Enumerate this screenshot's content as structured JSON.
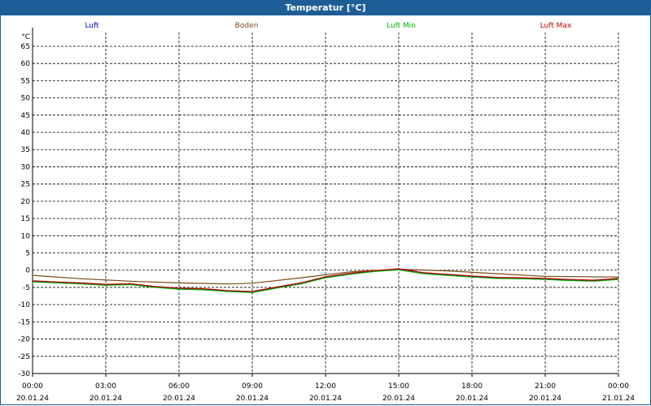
{
  "chart_data": {
    "type": "line",
    "title": "Temperatur [°C]",
    "ylabel": "°C",
    "ylim": [
      -30,
      69
    ],
    "yticks": [
      65,
      60,
      55,
      50,
      45,
      40,
      35,
      30,
      25,
      20,
      15,
      10,
      5,
      0,
      -5,
      -10,
      -15,
      -20,
      -25,
      -30
    ],
    "xlim": [
      "20.01.24 00:00",
      "21.01.24 00:00"
    ],
    "xticks": [
      {
        "time": "00:00",
        "date": "20.01.24"
      },
      {
        "time": "03:00",
        "date": "20.01.24"
      },
      {
        "time": "06:00",
        "date": "20.01.24"
      },
      {
        "time": "09:00",
        "date": "20.01.24"
      },
      {
        "time": "12:00",
        "date": "20.01.24"
      },
      {
        "time": "15:00",
        "date": "20.01.24"
      },
      {
        "time": "18:00",
        "date": "20.01.24"
      },
      {
        "time": "21:00",
        "date": "20.01.24"
      },
      {
        "time": "00:00",
        "date": "21.01.24"
      }
    ],
    "grid": true,
    "legend_position": "top",
    "series": [
      {
        "name": "Luft",
        "color": "#0000c0",
        "x": [
          "20.01.24 00:00",
          "20.01.24 01:00",
          "20.01.24 02:00",
          "20.01.24 03:00",
          "20.01.24 04:00",
          "20.01.24 05:00",
          "20.01.24 06:00",
          "20.01.24 07:00",
          "20.01.24 08:00",
          "20.01.24 09:00",
          "20.01.24 10:00",
          "20.01.24 11:00",
          "20.01.24 12:00",
          "20.01.24 13:00",
          "20.01.24 14:00",
          "20.01.24 15:00",
          "20.01.24 16:00",
          "20.01.24 17:00",
          "20.01.24 18:00",
          "20.01.24 19:00",
          "20.01.24 20:00",
          "20.01.24 21:00",
          "20.01.24 22:00",
          "20.01.24 23:00",
          "21.01.24 00:00"
        ],
        "values": [
          -3.2,
          -3.5,
          -3.8,
          -4.2,
          -4.0,
          -4.8,
          -5.3,
          -5.5,
          -6.0,
          -6.3,
          -5.0,
          -3.8,
          -2.0,
          -1.0,
          -0.2,
          0.3,
          -0.8,
          -1.3,
          -1.8,
          -2.2,
          -2.3,
          -2.5,
          -2.8,
          -3.0,
          -2.5
        ]
      },
      {
        "name": "Boden",
        "color": "#7a4a12",
        "x": [
          "20.01.24 00:00",
          "20.01.24 02:00",
          "20.01.24 04:00",
          "20.01.24 06:00",
          "20.01.24 08:00",
          "20.01.24 09:00",
          "20.01.24 11:00",
          "20.01.24 13:00",
          "20.01.24 15:00",
          "20.01.24 17:00",
          "20.01.24 19:00",
          "20.01.24 21:00",
          "21.01.24 00:00"
        ],
        "values": [
          -1.5,
          -2.5,
          -3.2,
          -3.7,
          -4.0,
          -3.8,
          -2.2,
          -0.5,
          0.3,
          -0.2,
          -1.0,
          -1.8,
          -2.0
        ]
      },
      {
        "name": "Luft Min",
        "color": "#00b000",
        "x": [
          "20.01.24 00:00",
          "20.01.24 01:00",
          "20.01.24 02:00",
          "20.01.24 03:00",
          "20.01.24 04:00",
          "20.01.24 05:00",
          "20.01.24 06:00",
          "20.01.24 07:00",
          "20.01.24 08:00",
          "20.01.24 09:00",
          "20.01.24 10:00",
          "20.01.24 11:00",
          "20.01.24 12:00",
          "20.01.24 13:00",
          "20.01.24 14:00",
          "20.01.24 15:00",
          "20.01.24 16:00",
          "20.01.24 17:00",
          "20.01.24 18:00",
          "20.01.24 19:00",
          "20.01.24 20:00",
          "20.01.24 21:00",
          "20.01.24 22:00",
          "20.01.24 23:00",
          "21.01.24 00:00"
        ],
        "values": [
          -3.4,
          -3.7,
          -4.0,
          -4.4,
          -4.2,
          -5.0,
          -5.5,
          -5.7,
          -6.2,
          -6.5,
          -5.2,
          -4.0,
          -2.2,
          -1.2,
          -0.4,
          0.1,
          -1.0,
          -1.5,
          -2.0,
          -2.4,
          -2.5,
          -2.7,
          -3.0,
          -3.2,
          -2.7
        ]
      },
      {
        "name": "Luft Max",
        "color": "#c00000",
        "x": [
          "20.01.24 00:00",
          "20.01.24 01:00",
          "20.01.24 02:00",
          "20.01.24 03:00",
          "20.01.24 04:00",
          "20.01.24 05:00",
          "20.01.24 06:00",
          "20.01.24 07:00",
          "20.01.24 08:00",
          "20.01.24 09:00",
          "20.01.24 10:00",
          "20.01.24 11:00",
          "20.01.24 12:00",
          "20.01.24 13:00",
          "20.01.24 14:00",
          "20.01.24 15:00",
          "20.01.24 16:00",
          "20.01.24 17:00",
          "20.01.24 18:00",
          "20.01.24 19:00",
          "20.01.24 20:00",
          "20.01.24 21:00",
          "20.01.24 22:00",
          "20.01.24 23:00",
          "21.01.24 00:00"
        ],
        "values": [
          -3.1,
          -3.4,
          -3.7,
          -4.1,
          -3.9,
          -4.7,
          -5.2,
          -5.4,
          -5.9,
          -6.2,
          -4.9,
          -3.7,
          -1.9,
          -0.9,
          -0.1,
          0.4,
          -0.7,
          -1.2,
          -1.7,
          -2.1,
          -2.2,
          -2.4,
          -2.7,
          -2.9,
          -2.4
        ]
      }
    ]
  }
}
